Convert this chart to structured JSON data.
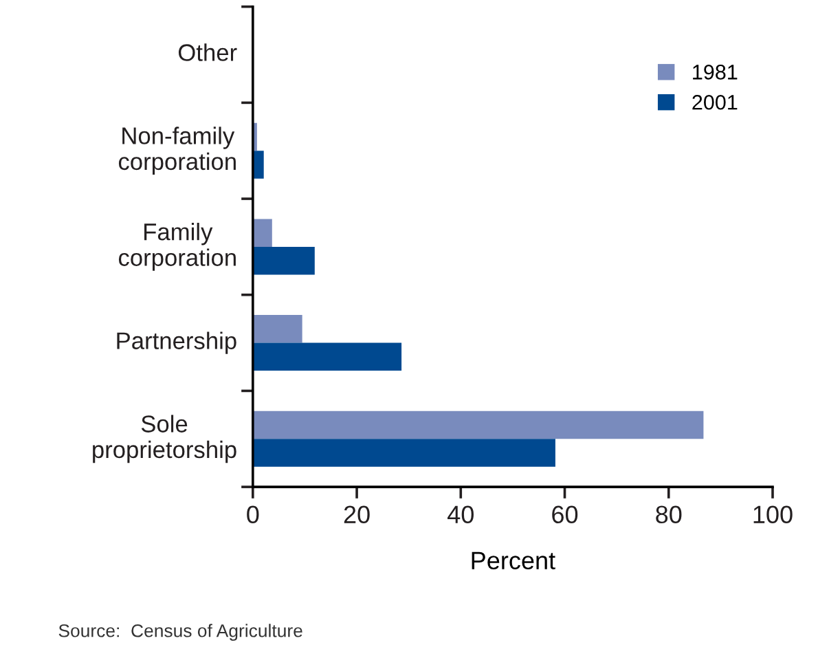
{
  "chart_data": {
    "type": "bar",
    "orientation": "horizontal",
    "categories": [
      "Other",
      "Non-family\ncorporation",
      "Family\ncorporation",
      "Partnership",
      "Sole\nproprietorship"
    ],
    "series": [
      {
        "name": "1981",
        "color": "#798bbd",
        "values": [
          0,
          0.8,
          3.7,
          9.5,
          86.7
        ]
      },
      {
        "name": "2001",
        "color": "#004990",
        "values": [
          0,
          2.1,
          11.9,
          28.6,
          58.2
        ]
      }
    ],
    "xlim": [
      0,
      100
    ],
    "xticks": [
      0,
      20,
      40,
      60,
      80,
      100
    ],
    "xlabel": "Percent",
    "legend": "top right",
    "grid": false,
    "annotations": [
      "Source:  Census of Agriculture"
    ]
  }
}
